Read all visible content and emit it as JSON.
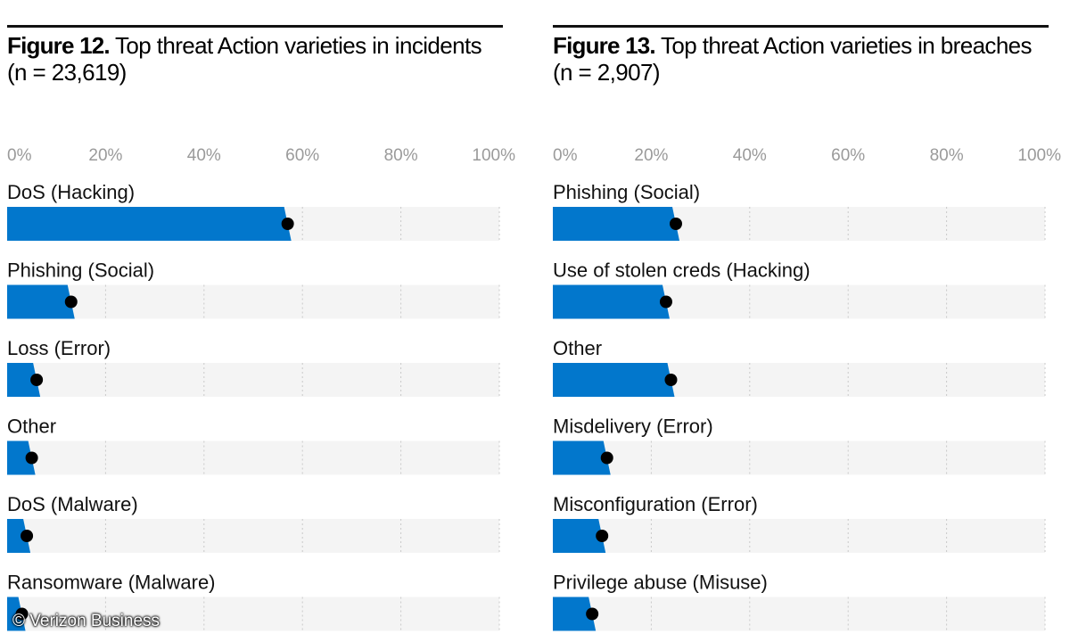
{
  "charts": [
    {
      "figure_label": "Figure 12.",
      "title_text": "Top threat Action varieties in incidents (n = 23,619)"
    },
    {
      "figure_label": "Figure 13.",
      "title_text": "Top threat Action varieties in breaches (n = 2,907)"
    }
  ],
  "chart_data": [
    {
      "type": "bar",
      "title": "Figure 12. Top threat Action varieties in incidents (n = 23,619)",
      "orientation": "horizontal",
      "xlim": [
        0,
        100
      ],
      "ticks": [
        "0%",
        "20%",
        "40%",
        "60%",
        "80%",
        "100%"
      ],
      "categories": [
        "DoS (Hacking)",
        "Phishing (Social)",
        "Loss (Error)",
        "Other",
        "DoS (Malware)",
        "Ransomware (Malware)"
      ],
      "values": [
        57,
        13,
        6,
        5,
        4,
        3
      ],
      "grid": true,
      "colors": {
        "bar": "#0277cc",
        "track": "#f4f4f4",
        "dot": "#000000"
      }
    },
    {
      "type": "bar",
      "title": "Figure 13. Top threat Action varieties in breaches (n = 2,907)",
      "orientation": "horizontal",
      "xlim": [
        0,
        100
      ],
      "ticks": [
        "0%",
        "20%",
        "40%",
        "60%",
        "80%",
        "100%"
      ],
      "categories": [
        "Phishing (Social)",
        "Use of stolen creds (Hacking)",
        "Other",
        "Misdelivery (Error)",
        "Misconfiguration (Error)",
        "Privilege abuse (Misuse)"
      ],
      "values": [
        25,
        23,
        24,
        11,
        10,
        8
      ],
      "grid": true,
      "colors": {
        "bar": "#0277cc",
        "track": "#f4f4f4",
        "dot": "#000000"
      }
    }
  ],
  "copyright": "© Verizon Business"
}
